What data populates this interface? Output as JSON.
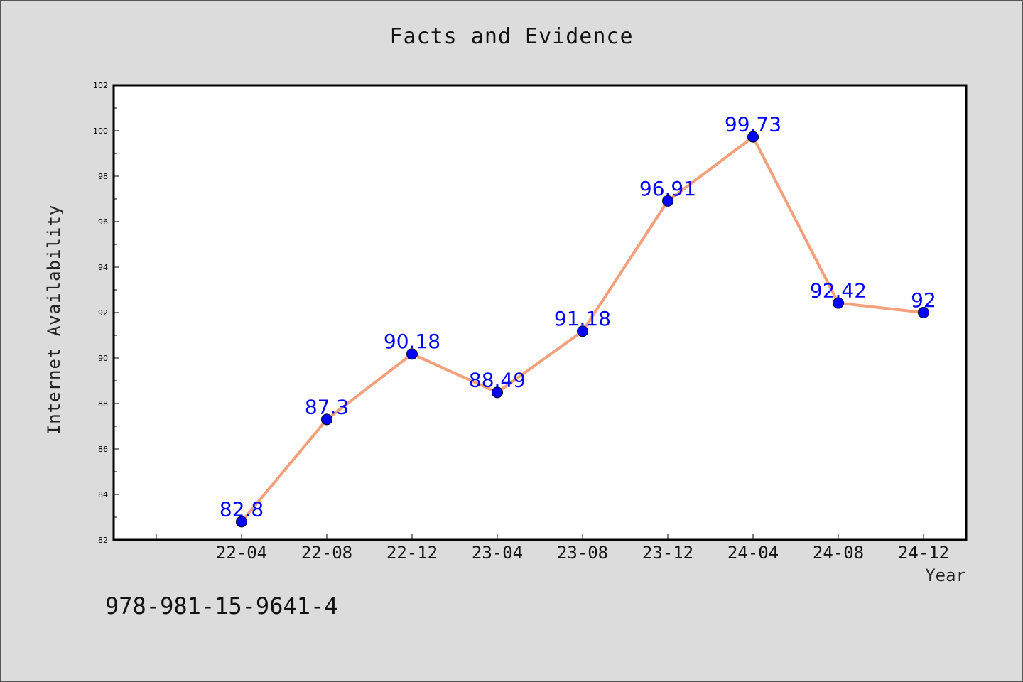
{
  "chart_data": {
    "type": "line",
    "title": "Facts and Evidence",
    "xlabel": "Year",
    "ylabel": "Internet Availability",
    "categories": [
      "22-04",
      "22-08",
      "22-12",
      "23-04",
      "23-08",
      "23-12",
      "24-04",
      "24-08",
      "24-12"
    ],
    "values": [
      82.8,
      87.3,
      90.18,
      88.49,
      91.18,
      96.91,
      99.73,
      92.42,
      92
    ],
    "data_labels": [
      "82.8",
      "87.3",
      "90.18",
      "88.49",
      "91.18",
      "96.91",
      "99.73",
      "92.42",
      "92"
    ],
    "ylim": [
      82,
      102
    ],
    "yticks": [
      82,
      84,
      86,
      88,
      90,
      92,
      94,
      96,
      98,
      100,
      102
    ],
    "grid": false,
    "line_color": "#f4a07a",
    "marker_color": "#0000ff",
    "label_color": "#0000ff",
    "background_color": "#dcdcdc",
    "plot_background_color": "#ffffff"
  },
  "footnote": "978-981-15-9641-4"
}
